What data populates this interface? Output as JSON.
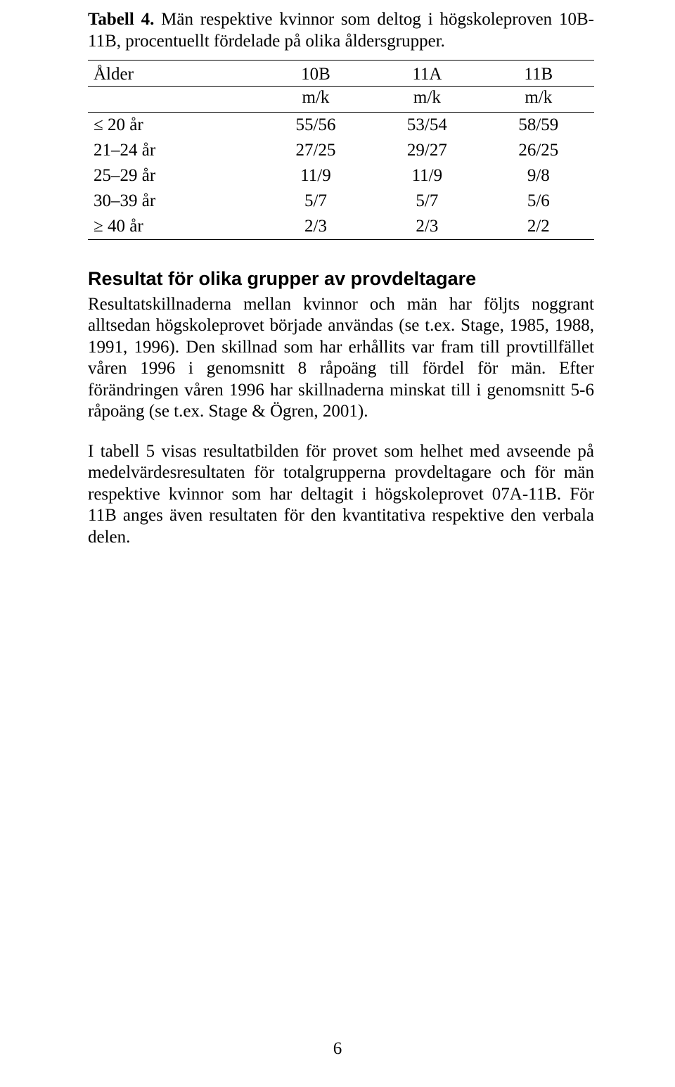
{
  "caption": {
    "label": "Tabell 4.",
    "text": " Män respektive kvinnor som deltog i högskoleproven 10B-11B, procentuellt fördelade på olika åldersgrupper."
  },
  "table": {
    "head": {
      "col0": "Ålder",
      "col1": "10B",
      "col2": "11A",
      "col3": "11B",
      "sub": "m/k"
    },
    "rows": [
      {
        "label": "≤ 20 år",
        "c1": "55/56",
        "c2": "53/54",
        "c3": "58/59"
      },
      {
        "label": "21–24 år",
        "c1": "27/25",
        "c2": "29/27",
        "c3": "26/25"
      },
      {
        "label": "25–29 år",
        "c1": "11/9",
        "c2": "11/9",
        "c3": "9/8"
      },
      {
        "label": "30–39 år",
        "c1": "5/7",
        "c2": "5/7",
        "c3": "5/6"
      },
      {
        "label": "≥ 40 år",
        "c1": "2/3",
        "c2": "2/3",
        "c3": "2/2"
      }
    ]
  },
  "section_heading": "Resultat för olika grupper av provdeltagare",
  "para1": "Resultatskillnaderna mellan kvinnor och män har följts noggrant alltsedan högskoleprovet började användas (se t.ex. Stage, 1985, 1988, 1991, 1996). Den skillnad som har erhållits var fram till provtillfället våren 1996 i genomsnitt 8 råpoäng till fördel för män. Efter förändringen våren 1996 har skillnaderna minskat till i genomsnitt 5-6 råpoäng (se t.ex. Stage & Ögren, 2001).",
  "para2": "I tabell 5 visas resultatbilden för provet som helhet med avseende på medelvärdesresultaten för totalgrupperna provdeltagare och för män respektive kvinnor som har deltagit i högskoleprovet 07A-11B. För 11B anges även resultaten för den kvantitativa respektive den verbala delen.",
  "page_number": "6"
}
